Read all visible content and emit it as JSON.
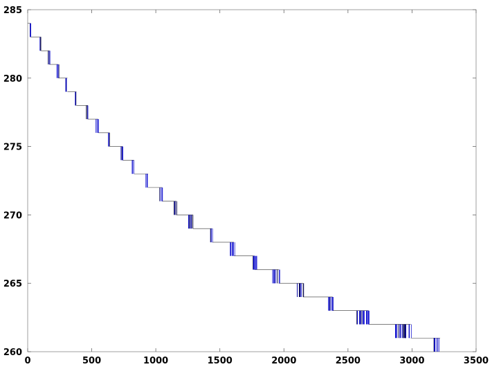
{
  "chart_data": {
    "type": "line",
    "title": "",
    "xlabel": "",
    "ylabel": "",
    "xlim": [
      0,
      3500
    ],
    "ylim": [
      260,
      285
    ],
    "xticks": [
      0,
      500,
      1000,
      1500,
      2000,
      2500,
      3000,
      3500
    ],
    "yticks": [
      260,
      265,
      270,
      275,
      280,
      285
    ],
    "grid": false,
    "legend": "none",
    "series": [
      {
        "color": "#0000cc",
        "steps": [
          {
            "level": 284,
            "x_start": 0,
            "x_end": 25
          },
          {
            "level": 283,
            "x_start": 25,
            "x_end": 105
          },
          {
            "level": 282,
            "x_start": 105,
            "x_end": 170
          },
          {
            "level": 281,
            "x_start": 170,
            "x_end": 240
          },
          {
            "level": 280,
            "x_start": 240,
            "x_end": 310
          },
          {
            "level": 279,
            "x_start": 310,
            "x_end": 380
          },
          {
            "level": 278,
            "x_start": 380,
            "x_end": 470
          },
          {
            "level": 277,
            "x_start": 470,
            "x_end": 550
          },
          {
            "level": 276,
            "x_start": 550,
            "x_end": 640
          },
          {
            "level": 275,
            "x_start": 640,
            "x_end": 740
          },
          {
            "level": 274,
            "x_start": 740,
            "x_end": 830
          },
          {
            "level": 273,
            "x_start": 830,
            "x_end": 940
          },
          {
            "level": 272,
            "x_start": 940,
            "x_end": 1050
          },
          {
            "level": 271,
            "x_start": 1050,
            "x_end": 1160
          },
          {
            "level": 270,
            "x_start": 1160,
            "x_end": 1290
          },
          {
            "level": 269,
            "x_start": 1290,
            "x_end": 1440
          },
          {
            "level": 268,
            "x_start": 1440,
            "x_end": 1610
          },
          {
            "level": 267,
            "x_start": 1610,
            "x_end": 1770
          },
          {
            "level": 266,
            "x_start": 1770,
            "x_end": 1960
          },
          {
            "level": 265,
            "x_start": 1960,
            "x_end": 2150
          },
          {
            "level": 264,
            "x_start": 2150,
            "x_end": 2380
          },
          {
            "level": 263,
            "x_start": 2380,
            "x_end": 2660
          },
          {
            "level": 262,
            "x_start": 2660,
            "x_end": 2990
          },
          {
            "level": 261,
            "x_start": 2990,
            "x_end": 3220
          },
          {
            "level": 260,
            "x_start": 3220,
            "x_end": 3220
          }
        ],
        "transition_clusters": [
          {
            "from": 284,
            "to": 283,
            "x_range": [
              18,
              30
            ]
          },
          {
            "from": 283,
            "to": 282,
            "x_range": [
              90,
              110
            ]
          },
          {
            "from": 282,
            "to": 281,
            "x_range": [
              155,
              175
            ]
          },
          {
            "from": 281,
            "to": 280,
            "x_range": [
              225,
              245
            ]
          },
          {
            "from": 280,
            "to": 279,
            "x_range": [
              295,
              310
            ]
          },
          {
            "from": 279,
            "to": 278,
            "x_range": [
              370,
              385
            ]
          },
          {
            "from": 278,
            "to": 277,
            "x_range": [
              455,
              475
            ]
          },
          {
            "from": 277,
            "to": 276,
            "x_range": [
              530,
              555
            ]
          },
          {
            "from": 276,
            "to": 275,
            "x_range": [
              625,
              645
            ]
          },
          {
            "from": 275,
            "to": 274,
            "x_range": [
              720,
              745
            ]
          },
          {
            "from": 274,
            "to": 273,
            "x_range": [
              815,
              835
            ]
          },
          {
            "from": 273,
            "to": 272,
            "x_range": [
              920,
              945
            ]
          },
          {
            "from": 272,
            "to": 271,
            "x_range": [
              1030,
              1055
            ]
          },
          {
            "from": 271,
            "to": 270,
            "x_range": [
              1140,
              1170
            ]
          },
          {
            "from": 270,
            "to": 269,
            "x_range": [
              1255,
              1300
            ]
          },
          {
            "from": 269,
            "to": 268,
            "x_range": [
              1425,
              1450
            ]
          },
          {
            "from": 268,
            "to": 267,
            "x_range": [
              1580,
              1620
            ]
          },
          {
            "from": 267,
            "to": 266,
            "x_range": [
              1735,
              1790
            ]
          },
          {
            "from": 266,
            "to": 265,
            "x_range": [
              1910,
              1970
            ]
          },
          {
            "from": 265,
            "to": 264,
            "x_range": [
              2100,
              2160
            ]
          },
          {
            "from": 264,
            "to": 263,
            "x_range": [
              2340,
              2390
            ]
          },
          {
            "from": 263,
            "to": 262,
            "x_range": [
              2560,
              2670
            ]
          },
          {
            "from": 262,
            "to": 261,
            "x_range": [
              2870,
              3000
            ]
          },
          {
            "from": 261,
            "to": 260,
            "x_range": [
              3170,
              3230
            ]
          }
        ]
      }
    ]
  }
}
